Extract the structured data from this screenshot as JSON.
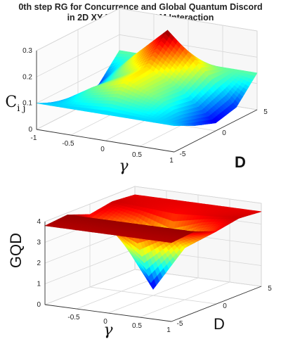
{
  "figure": {
    "title_line1": "0th step RG for Concurrence and Global Quantum Discord",
    "title_line2": "in 2D XY Model with DM Interaction"
  },
  "chart_data": [
    {
      "type": "surface",
      "title": "0th step RG for Concurrence and Global Quantum Discord in 2D XY Model with DM Interaction",
      "xlabel": "γ",
      "ylabel": "D",
      "zlabel": "C",
      "zlabel_sub": "i j",
      "xlim": [
        -1,
        1
      ],
      "ylim": [
        -5,
        5
      ],
      "zlim": [
        0,
        0.3
      ],
      "x_ticks": [
        "-1",
        "-0.5",
        "0",
        "0.5",
        "1"
      ],
      "y_ticks": [
        "-5",
        "0",
        "5"
      ],
      "z_ticks": [
        "0",
        "0.1",
        "0.2",
        "0.3"
      ],
      "colormap": "jet",
      "grid": true,
      "x": [
        -1,
        -0.5,
        0,
        0.5,
        1
      ],
      "y": [
        -5,
        -2.5,
        0,
        2.5,
        5
      ],
      "z": [
        [
          0.1,
          0.1,
          0.1,
          0.1,
          0.1
        ],
        [
          0.06,
          0.14,
          0.19,
          0.14,
          0.06
        ],
        [
          0.03,
          0.13,
          0.2,
          0.13,
          0.03
        ],
        [
          0.05,
          0.18,
          0.3,
          0.18,
          0.05
        ],
        [
          0.14,
          0.14,
          0.14,
          0.14,
          0.14
        ]
      ]
    },
    {
      "type": "surface",
      "xlabel": "γ",
      "ylabel": "D",
      "zlabel": "GQD",
      "xlim": [
        -1,
        1
      ],
      "ylim": [
        -5,
        5
      ],
      "zlim": [
        0,
        4
      ],
      "x_ticks": [
        "-0.5",
        "0",
        "0.5",
        "1"
      ],
      "y_ticks": [
        "-5",
        "0",
        "5"
      ],
      "z_ticks": [
        "0",
        "1",
        "2",
        "3",
        "4"
      ],
      "colormap": "jet",
      "grid": true,
      "x": [
        -1,
        -0.5,
        0,
        0.5,
        1
      ],
      "y": [
        -5,
        -2.5,
        0,
        2.5,
        5
      ],
      "z": [
        [
          3.8,
          3.8,
          3.8,
          3.8,
          3.8
        ],
        [
          3.9,
          3.9,
          3.9,
          3.9,
          3.9
        ],
        [
          3.5,
          2.5,
          0.3,
          2.5,
          3.5
        ],
        [
          3.7,
          3.6,
          3.5,
          3.6,
          3.7
        ],
        [
          3.6,
          3.6,
          3.6,
          3.6,
          3.6
        ]
      ]
    }
  ]
}
